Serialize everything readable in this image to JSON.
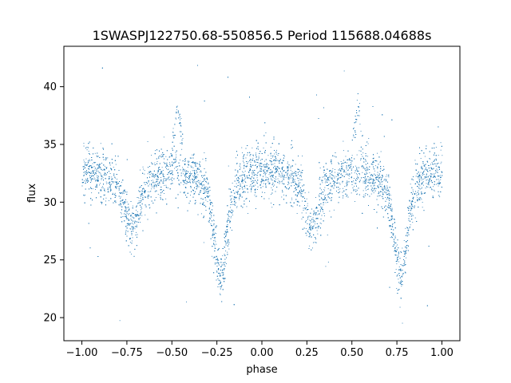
{
  "chart_data": {
    "type": "scatter",
    "title": "1SWASPJ122750.68-550856.5 Period 115688.04688s",
    "xlabel": "phase",
    "ylabel": "flux",
    "xlim": [
      -1.1,
      1.1
    ],
    "ylim": [
      18,
      43.5
    ],
    "xticks": [
      -1.0,
      -0.75,
      -0.5,
      -0.25,
      0.0,
      0.25,
      0.5,
      0.75,
      1.0
    ],
    "xtick_labels": [
      "−1.00",
      "−0.75",
      "−0.50",
      "−0.25",
      "0.00",
      "0.25",
      "0.50",
      "0.75",
      "1.00"
    ],
    "yticks": [
      20,
      25,
      30,
      35,
      40
    ],
    "ytick_labels": [
      "20",
      "25",
      "30",
      "35",
      "40"
    ],
    "grid": false,
    "point_color": "#1f77b4",
    "series": [
      {
        "profile_phase": [
          -1.0,
          -0.9,
          -0.8,
          -0.76,
          -0.74,
          -0.72,
          -0.7,
          -0.66,
          -0.6,
          -0.5,
          -0.45,
          -0.35,
          -0.3,
          -0.28,
          -0.26,
          -0.24,
          -0.23,
          -0.22,
          -0.2,
          -0.18,
          -0.15,
          -0.1,
          0.0,
          0.1,
          0.2,
          0.24,
          0.26,
          0.28,
          0.3,
          0.34,
          0.4,
          0.5,
          0.55,
          0.65,
          0.7,
          0.72,
          0.74,
          0.76,
          0.77,
          0.78,
          0.8,
          0.82,
          0.85,
          0.9,
          1.0
        ],
        "profile_flux": [
          32.5,
          32.6,
          31.5,
          29.5,
          28.2,
          27.8,
          28.5,
          31.0,
          32.2,
          32.5,
          32.5,
          32.0,
          30.5,
          28.5,
          26.0,
          24.0,
          23.5,
          24.0,
          26.5,
          29.0,
          31.0,
          32.3,
          32.8,
          32.6,
          31.5,
          29.5,
          28.2,
          27.8,
          28.5,
          31.0,
          32.2,
          32.5,
          32.5,
          32.0,
          30.5,
          28.5,
          26.0,
          24.0,
          23.5,
          24.0,
          26.5,
          29.0,
          31.0,
          32.3,
          32.5
        ],
        "scatter_sigma": 1.1,
        "bump_phases": [
          -0.47,
          0.53
        ],
        "bump_peak_flux": 38.5,
        "n_points": 9000
      }
    ]
  }
}
